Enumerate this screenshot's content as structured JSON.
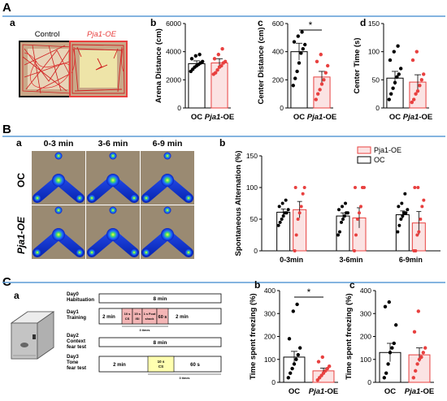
{
  "panel_labels": {
    "A": "A",
    "a": "a",
    "b": "b",
    "c": "c",
    "d": "d",
    "B": "B",
    "Ba": "a",
    "Bb": "b",
    "C": "C",
    "Ca": "a",
    "Cb": "b",
    "Cc": "c"
  },
  "panelA": {
    "control_label": "Control",
    "pja1_label": "Pja1-OE"
  },
  "panelB_heatmaps": {
    "times": [
      "0-3 min",
      "3-6 min",
      "6-9 min"
    ],
    "rows": [
      "OC",
      "Pja1-OE"
    ]
  },
  "protocol": {
    "day0": {
      "title": "Day0",
      "sub": "Habituation",
      "text": "8 min"
    },
    "day1": {
      "title": "Day1",
      "sub": "Training",
      "seg1": "2 min",
      "cs": "10 s",
      "cs2": "CS",
      "isi": "15 s",
      "isi2": "ISI",
      "shock1": "1 s Foot",
      "shock2": "shock",
      "s60": "60 s",
      "end": "2 min",
      "times": "3 times"
    },
    "day2": {
      "title": "Day2",
      "sub": "Context",
      "sub2": "fear test",
      "text": "8 min"
    },
    "day3": {
      "title": "Day3",
      "sub": "Tone",
      "sub2": "fear test",
      "seg1": "2 min",
      "cs": "10 s",
      "cs2": "CS",
      "s60": "60 s",
      "times": "3 times"
    }
  },
  "colors": {
    "oc": "#000000",
    "pja": "#e8403f",
    "pja_fill": "#fbe3e3"
  },
  "chart_data": [
    {
      "id": "Ab",
      "type": "bar",
      "categories": [
        "OC",
        "Pja1-OE"
      ],
      "ylabel": "Arena Distance (cm)",
      "ylim": [
        0,
        6000
      ],
      "yticks": [
        0,
        2000,
        4000,
        6000
      ],
      "values": [
        3150,
        3200
      ],
      "errors": [
        200,
        300
      ],
      "points": [
        [
          2600,
          2750,
          2900,
          3000,
          3100,
          3200,
          3300,
          3500,
          3700,
          3800
        ],
        [
          2400,
          2500,
          2700,
          2900,
          3000,
          3200,
          3300,
          3500,
          3800,
          4200
        ]
      ]
    },
    {
      "id": "Ac",
      "type": "bar",
      "categories": [
        "OC",
        "Pja1-OE"
      ],
      "ylabel": "Center Distance (cm)",
      "ylim": [
        0,
        600
      ],
      "yticks": [
        0,
        200,
        400,
        600
      ],
      "values": [
        400,
        220
      ],
      "errors": [
        60,
        40
      ],
      "points": [
        [
          160,
          210,
          260,
          320,
          390,
          420,
          450,
          470,
          510,
          540
        ],
        [
          60,
          100,
          130,
          170,
          200,
          250,
          300,
          330,
          380
        ]
      ],
      "significance": "*"
    },
    {
      "id": "Ad",
      "type": "bar",
      "categories": [
        "OC",
        "Pja1-OE"
      ],
      "ylabel": "Center Time (s)",
      "ylim": [
        0,
        150
      ],
      "yticks": [
        0,
        50,
        100,
        150
      ],
      "values": [
        53,
        46
      ],
      "errors": [
        12,
        13
      ],
      "points": [
        [
          15,
          25,
          35,
          45,
          55,
          60,
          70,
          85,
          100,
          110
        ],
        [
          10,
          15,
          25,
          30,
          40,
          50,
          60,
          85,
          100
        ]
      ]
    },
    {
      "id": "Bb",
      "type": "bar",
      "categories": [
        "0-3min",
        "3-6min",
        "6-9min"
      ],
      "ylabel": "Spontaneous Alternation (%)",
      "ylim": [
        0,
        150
      ],
      "yticks": [
        0,
        50,
        100,
        150
      ],
      "series": [
        {
          "name": "OC",
          "values": [
            61,
            55,
            57
          ],
          "errors": [
            5,
            5,
            6
          ]
        },
        {
          "name": "Pja1-OE",
          "values": [
            65,
            52,
            44
          ],
          "errors": [
            13,
            16,
            18
          ]
        }
      ],
      "points": {
        "OC": [
          [
            40,
            45,
            50,
            55,
            60,
            60,
            65,
            70,
            75,
            80
          ],
          [
            25,
            30,
            45,
            50,
            55,
            60,
            60,
            65,
            70,
            75
          ],
          [
            30,
            40,
            50,
            55,
            60,
            60,
            65,
            70,
            75,
            90
          ]
        ],
        "Pja1-OE": [
          [
            0,
            25,
            50,
            60,
            70,
            90,
            100,
            100
          ],
          [
            0,
            25,
            50,
            60,
            70,
            100,
            100,
            100
          ],
          [
            0,
            0,
            25,
            30,
            50,
            70,
            80,
            100,
            100
          ]
        ]
      },
      "legend": [
        "Pja1-OE",
        "OC"
      ]
    },
    {
      "id": "Cb",
      "type": "bar",
      "categories": [
        "OC",
        "Pja1-OE"
      ],
      "ylabel": "Time spent freezing (%)",
      "ylim": [
        0,
        400
      ],
      "yticks": [
        0,
        100,
        200,
        300,
        400
      ],
      "values": [
        110,
        50
      ],
      "errors": [
        25,
        12
      ],
      "points": [
        [
          20,
          40,
          60,
          80,
          100,
          120,
          150,
          190,
          310,
          340
        ],
        [
          10,
          20,
          30,
          40,
          50,
          60,
          70,
          90,
          110
        ]
      ],
      "significance": "*"
    },
    {
      "id": "Cc",
      "type": "bar",
      "categories": [
        "OC",
        "Pja1-OE"
      ],
      "ylabel": "Time spent freezing (%)",
      "ylim": [
        0,
        400
      ],
      "yticks": [
        0,
        100,
        200,
        300,
        400
      ],
      "values": [
        130,
        120
      ],
      "errors": [
        40,
        30
      ],
      "points": [
        [
          20,
          40,
          80,
          130,
          150,
          170,
          250,
          330,
          350
        ],
        [
          20,
          50,
          80,
          100,
          110,
          130,
          150,
          220,
          310
        ]
      ]
    }
  ]
}
